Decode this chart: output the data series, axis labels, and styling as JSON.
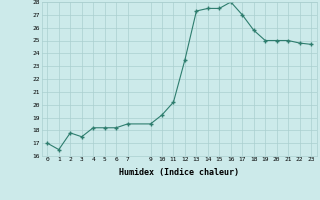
{
  "title": "",
  "xlabel": "Humidex (Indice chaleur)",
  "ylabel": "",
  "x": [
    0,
    1,
    2,
    3,
    4,
    5,
    6,
    7,
    9,
    10,
    11,
    12,
    13,
    14,
    15,
    16,
    17,
    18,
    19,
    20,
    21,
    22,
    23
  ],
  "y": [
    17.0,
    16.5,
    17.8,
    17.5,
    18.2,
    18.2,
    18.2,
    18.5,
    18.5,
    19.2,
    20.2,
    23.5,
    27.3,
    27.5,
    27.5,
    28.0,
    27.0,
    25.8,
    25.0,
    25.0,
    25.0,
    24.8,
    24.7
  ],
  "ylim": [
    16,
    28
  ],
  "xlim": [
    -0.5,
    23.5
  ],
  "yticks": [
    16,
    17,
    18,
    19,
    20,
    21,
    22,
    23,
    24,
    25,
    26,
    27,
    28
  ],
  "xticks": [
    0,
    1,
    2,
    3,
    4,
    5,
    6,
    7,
    9,
    10,
    11,
    12,
    13,
    14,
    15,
    16,
    17,
    18,
    19,
    20,
    21,
    22,
    23
  ],
  "line_color": "#2e7d6e",
  "bg_color": "#cceaea",
  "grid_color": "#aacfcf",
  "marker": "+"
}
